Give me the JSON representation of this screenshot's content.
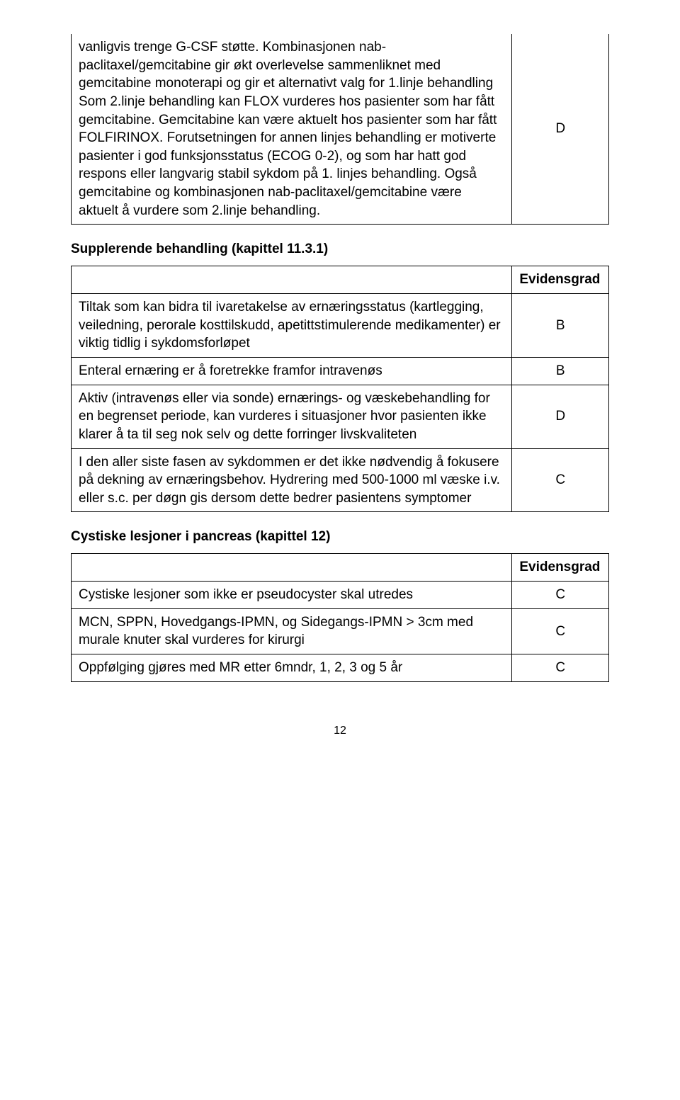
{
  "table1": {
    "rows": [
      {
        "text": "vanligvis trenge G-CSF støtte.\nKombinasjonen nab-paclitaxel/gemcitabine gir økt overlevelse sammenliknet med gemcitabine monoterapi og gir et alternativt valg for 1.linje behandling\nSom 2.linje behandling kan FLOX vurderes hos pasienter som har fått gemcitabine. Gemcitabine kan være aktuelt hos pasienter som har fått FOLFIRINOX. Forutsetningen for annen linjes behandling er motiverte pasienter i god funksjonsstatus (ECOG 0-2), og som har hatt god respons eller langvarig stabil sykdom på 1. linjes behandling. Også gemcitabine og kombinasjonen nab-paclitaxel/gemcitabine være aktuelt å vurdere som 2.linje behandling.",
        "grade": "D"
      }
    ]
  },
  "section2_title": "Supplerende behandling (kapittel 11.3.1)",
  "table2": {
    "header_label": "Evidensgrad",
    "rows": [
      {
        "text": "Tiltak som kan bidra til ivaretakelse av ernæringsstatus (kartlegging, veiledning, perorale kosttilskudd, apetittstimulerende medikamenter) er viktig tidlig i sykdomsforløpet",
        "grade": "B"
      },
      {
        "text": "Enteral ernæring er å foretrekke framfor intravenøs",
        "grade": "B"
      },
      {
        "text": "Aktiv (intravenøs eller via sonde) ernærings- og væskebehandling for en begrenset periode, kan vurderes i situasjoner hvor pasienten ikke klarer å ta til seg nok selv og dette forringer livskvaliteten",
        "grade": "D"
      },
      {
        "text": "I den aller siste fasen av sykdommen er det ikke nødvendig å fokusere på dekning av ernæringsbehov. Hydrering med 500-1000 ml væske i.v. eller s.c. per døgn gis dersom dette bedrer pasientens symptomer",
        "grade": "C"
      }
    ]
  },
  "section3_title": "Cystiske lesjoner i pancreas (kapittel 12)",
  "table3": {
    "header_label": "Evidensgrad",
    "rows": [
      {
        "text": "Cystiske lesjoner som ikke er pseudocyster skal utredes",
        "grade": "C"
      },
      {
        "text": "MCN, SPPN, Hovedgangs-IPMN, og Sidegangs-IPMN > 3cm med murale knuter skal vurderes for kirurgi",
        "grade": "C"
      },
      {
        "text": "Oppfølging gjøres med MR etter 6mndr, 1, 2, 3 og 5 år",
        "grade": "C"
      }
    ]
  },
  "page_number": "12"
}
